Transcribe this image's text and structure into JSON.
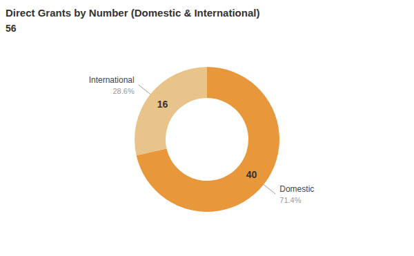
{
  "chart_data": {
    "type": "pie",
    "title": "Direct Grants by Number (Domestic & International)",
    "subtitle": "56",
    "categories": [
      "Domestic",
      "International"
    ],
    "values": [
      40,
      16
    ],
    "colors": [
      "#E8973A",
      "#E8C48A"
    ],
    "data_labels": true,
    "annotations": [
      "71.4%",
      "28.6%"
    ]
  }
}
